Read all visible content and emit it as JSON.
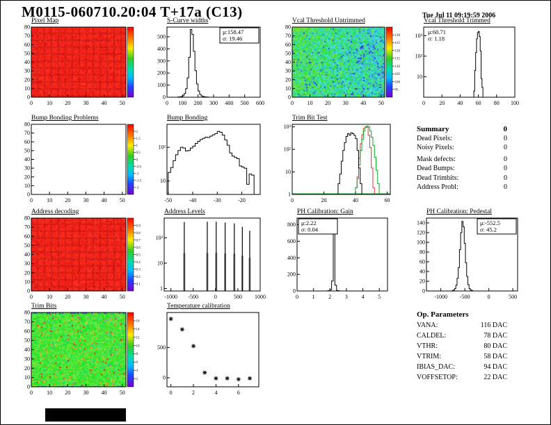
{
  "header": {
    "title": "M0115-060710.20:04 T+17a (C13)",
    "date": "Tue Jul 11 09:19:59 2006"
  },
  "summary": {
    "title": "Summary",
    "value": "0",
    "rows": [
      {
        "label": "Dead Pixels:",
        "value": "0"
      },
      {
        "label": "Noisy Pixels:",
        "value": "0"
      },
      {
        "label": "Mask defects:",
        "value": "0"
      },
      {
        "label": "Dead Bumps:",
        "value": "0"
      },
      {
        "label": "Dead Trimbits:",
        "value": "0"
      },
      {
        "label": "Address Probl:",
        "value": "0"
      }
    ]
  },
  "op_parameters": {
    "title": "Op. Parameters",
    "rows": [
      {
        "label": "VANA:",
        "value": "116 DAC"
      },
      {
        "label": "CALDEL:",
        "value": "78 DAC"
      },
      {
        "label": "VTHR:",
        "value": "80 DAC"
      },
      {
        "label": "VTRIM:",
        "value": "58 DAC"
      },
      {
        "label": "IBIAS_DAC:",
        "value": "94 DAC"
      },
      {
        "label": "VOFFSETOP:",
        "value": "22 DAC"
      }
    ]
  },
  "chart_data": [
    {
      "id": "pixel_map",
      "type": "heatmap",
      "title": "Pixel Map",
      "palette": "red",
      "seed": 7,
      "x": {
        "min": 0,
        "max": 52,
        "ticks": [
          0,
          10,
          20,
          30,
          40,
          50
        ]
      },
      "y": {
        "min": 0,
        "max": 80,
        "ticks": [
          0,
          10,
          20,
          30,
          40,
          50,
          60,
          70,
          80
        ]
      },
      "colorbar": {
        "labels": []
      }
    },
    {
      "id": "scurve",
      "type": "histogram",
      "title": "S-Curve widths",
      "x": {
        "min": 0,
        "max": 600,
        "ticks": [
          0,
          100,
          200,
          300,
          400,
          500,
          600
        ]
      },
      "y": {
        "min": 0,
        "max": 580,
        "ticks": [
          0,
          100,
          200,
          300,
          400,
          500
        ]
      },
      "stats": {
        "mu": "μ:158.47",
        "sigma": "σ: 19.46",
        "pos": "tr",
        "boxed": true
      },
      "bins": {
        "start": 70,
        "width": 10,
        "counts": [
          2,
          3,
          6,
          12,
          30,
          70,
          160,
          330,
          560,
          520,
          380,
          220,
          110,
          52,
          24,
          11,
          6,
          3,
          2,
          1
        ]
      }
    },
    {
      "id": "vcal_untrimmed",
      "type": "heatmap",
      "title": "Vcal Threshold Untrimmed",
      "palette": "vcal",
      "seed": 21,
      "x": {
        "min": 0,
        "max": 52,
        "ticks": [
          0,
          10,
          20,
          30,
          40,
          50
        ]
      },
      "y": {
        "min": 0,
        "max": 80,
        "ticks": [
          0,
          10,
          20,
          30,
          40,
          50,
          60,
          70,
          80
        ]
      },
      "colorbar": {
        "labels": [
          "130",
          "125",
          "120",
          "115",
          "110",
          "105",
          "100",
          "95"
        ]
      }
    },
    {
      "id": "vcal_trimmed",
      "type": "histogram",
      "title": "Vcal Threshold Trimmed",
      "x": {
        "min": 0,
        "max": 100,
        "ticks": [
          0,
          20,
          40,
          60,
          80,
          100
        ]
      },
      "y": {
        "log": true,
        "min": 1,
        "max": 2600,
        "ticks": [
          {
            "v": 10,
            "label": "10"
          },
          {
            "v": 100,
            "label": "10²"
          },
          {
            "v": 1000,
            "label": "10³"
          }
        ]
      },
      "stats": {
        "mu": "μ:60.71",
        "sigma": "σ: 1.18",
        "pos": "tl",
        "boxed": false
      },
      "bins": {
        "start": 55,
        "width": 1,
        "counts": [
          2,
          20,
          150,
          700,
          1400,
          1600,
          900,
          180,
          8,
          3
        ]
      }
    },
    {
      "id": "bb_problems",
      "type": "empty",
      "title": "Bump Bonding Problems",
      "x": {
        "min": 0,
        "max": 52,
        "ticks": [
          0,
          10,
          20,
          30,
          40,
          50
        ]
      },
      "y": {
        "min": 0,
        "max": 80,
        "ticks": [
          0,
          10,
          20,
          30,
          40,
          50,
          60,
          70,
          80
        ]
      },
      "colorbar": {
        "labels": [
          "2",
          "1.5",
          "1",
          "0.5",
          "0",
          "-0.5",
          "-1",
          "-1.5",
          "-2"
        ]
      }
    },
    {
      "id": "bump_bonding",
      "type": "histogram",
      "title": "Bump Bonding",
      "x": {
        "min": -50.5,
        "max": -12.5,
        "ticks": [
          -50,
          -40,
          -30,
          -20
        ]
      },
      "y": {
        "log": true,
        "min": 4,
        "max": 480,
        "ticks": [
          {
            "v": 10,
            "label": "10"
          },
          {
            "v": 100,
            "label": "10²"
          }
        ]
      },
      "bins": {
        "start": -50,
        "width": 1,
        "counts": [
          18,
          25,
          40,
          60,
          80,
          100,
          95,
          78,
          80,
          95,
          108,
          130,
          150,
          170,
          185,
          200,
          195,
          215,
          235,
          255,
          295,
          280,
          230,
          165,
          115,
          68,
          55,
          50,
          46,
          28,
          26,
          24,
          8,
          16,
          15,
          3
        ]
      }
    },
    {
      "id": "trim_bit_test",
      "type": "histogram",
      "title": "Trim Bit Test",
      "baseline": "#00aa22",
      "x": {
        "min": 0,
        "max": 62,
        "ticks": [
          0,
          20,
          40,
          60
        ]
      },
      "y": {
        "log": true,
        "min": 1,
        "max": 1300,
        "ticks": [
          {
            "v": 1,
            "label": "1"
          },
          {
            "v": 10,
            "label": "10"
          },
          {
            "v": 100,
            "label": "10²"
          },
          {
            "v": 1000,
            "label": "10³"
          }
        ]
      },
      "series": [
        {
          "name": "trim-red",
          "color": "#e23333",
          "bins": {
            "start": 39,
            "width": 1,
            "counts": [
              1,
              2,
              6,
              40,
              180,
              450,
              850,
              1000,
              950,
              420,
              120,
              15,
              2
            ]
          }
        },
        {
          "name": "trim-green",
          "color": "#00aa22",
          "bins": {
            "start": 40,
            "width": 1,
            "counts": [
              2,
              5,
              20,
              90,
              280,
              650,
              950,
              1100,
              1000,
              650,
              350,
              150,
              45,
              12,
              3,
              1
            ]
          }
        },
        {
          "name": "trim-black",
          "color": "#000000",
          "bins": {
            "start": 28,
            "width": 1,
            "counts": [
              1,
              3,
              8,
              30,
              90,
              200,
              380,
              500,
              430,
              550,
              500,
              420,
              300,
              90,
              15,
              3,
              1
            ]
          }
        }
      ]
    },
    {
      "id": "address_decoding",
      "type": "heatmap",
      "title": "Address decoding",
      "palette": "red",
      "seed": 13,
      "x": {
        "min": 0,
        "max": 52,
        "ticks": [
          0,
          10,
          20,
          30,
          40,
          50
        ]
      },
      "y": {
        "min": 0,
        "max": 80,
        "ticks": [
          0,
          10,
          20,
          30,
          40,
          50,
          60,
          70,
          80
        ]
      },
      "colorbar": {
        "labels": [
          "0.9",
          "0.8",
          "0.7",
          "0.6",
          "0.5",
          "0.4",
          "0.3",
          "0.2",
          "0.1"
        ]
      }
    },
    {
      "id": "address_levels",
      "type": "spikes",
      "title": "Address Levels",
      "x": {
        "min": -1150,
        "max": 1000,
        "ticks": [
          -1000,
          -500,
          0,
          500,
          1000
        ]
      },
      "y": {
        "log": true,
        "min": 0.8,
        "max": 600,
        "ticks": [
          {
            "v": 1,
            "label": "1"
          },
          {
            "v": 10,
            "label": "10"
          },
          {
            "v": 100,
            "label": "10²"
          }
        ]
      },
      "spikes": [
        [
          -700,
          420
        ],
        [
          -185,
          430
        ],
        [
          15,
          430
        ],
        [
          215,
          400
        ],
        [
          420,
          370
        ],
        [
          600,
          270
        ],
        [
          765,
          190
        ]
      ]
    },
    {
      "id": "ph_gain",
      "type": "histogram",
      "title": "PH Calibration: Gain",
      "x": {
        "min": 0,
        "max": 5.5,
        "ticks": [
          0,
          1,
          2,
          3,
          4,
          5
        ]
      },
      "y": {
        "min": 0,
        "max": 880,
        "ticks": [
          0,
          200,
          400,
          600,
          800
        ]
      },
      "stats": {
        "mu": "μ:2.22",
        "sigma": "σ: 0.04",
        "pos": "tl",
        "boxed": true
      },
      "bins": {
        "start": 1.8,
        "width": 0.1,
        "counts": [
          1,
          4,
          15,
          120,
          860,
          70,
          6,
          2
        ]
      }
    },
    {
      "id": "ph_pedestal",
      "type": "histogram",
      "title": "PH Calibration: Pedestal",
      "x": {
        "min": -1300,
        "max": 600,
        "ticks": [
          -1000,
          -500,
          0,
          500
        ]
      },
      "y": {
        "min": 0,
        "max": 150,
        "ticks": [
          0,
          20,
          40,
          60,
          80,
          100,
          120,
          140
        ]
      },
      "stats": {
        "mu": "μ:-552.5",
        "sigma": "σ: 45.2",
        "pos": "tr",
        "boxed": true
      },
      "bins": {
        "start": -762.5,
        "width": 25,
        "counts": [
          1,
          2,
          5,
          12,
          26,
          48,
          85,
          120,
          143,
          132,
          98,
          58,
          30,
          13,
          5,
          2,
          1
        ]
      }
    },
    {
      "id": "trim_bits",
      "type": "heatmap",
      "title": "Trim Bits",
      "palette": "trim",
      "seed": 5,
      "x": {
        "min": 0,
        "max": 52,
        "ticks": [
          0,
          10,
          20,
          30,
          40,
          50
        ]
      },
      "y": {
        "min": 0,
        "max": 80,
        "ticks": [
          0,
          10,
          20,
          30,
          40,
          50,
          60,
          70,
          80
        ]
      },
      "colorbar": {
        "labels": [
          "16",
          "14",
          "12",
          "10",
          "8",
          "6",
          "4",
          "2"
        ]
      }
    },
    {
      "id": "temp_cal",
      "type": "scatter",
      "title": "Temperature calibration",
      "x": {
        "min": -0.35,
        "max": 7.8,
        "ticks": [
          0,
          2,
          4,
          6
        ]
      },
      "y": {
        "min": -150,
        "max": 1080,
        "ticks": [
          0,
          500
        ]
      },
      "points": [
        [
          0,
          975
        ],
        [
          1,
          800
        ],
        [
          2,
          525
        ],
        [
          3,
          85
        ],
        [
          4,
          -10
        ],
        [
          5,
          -10
        ],
        [
          6,
          -25
        ],
        [
          7,
          -10
        ]
      ]
    }
  ]
}
